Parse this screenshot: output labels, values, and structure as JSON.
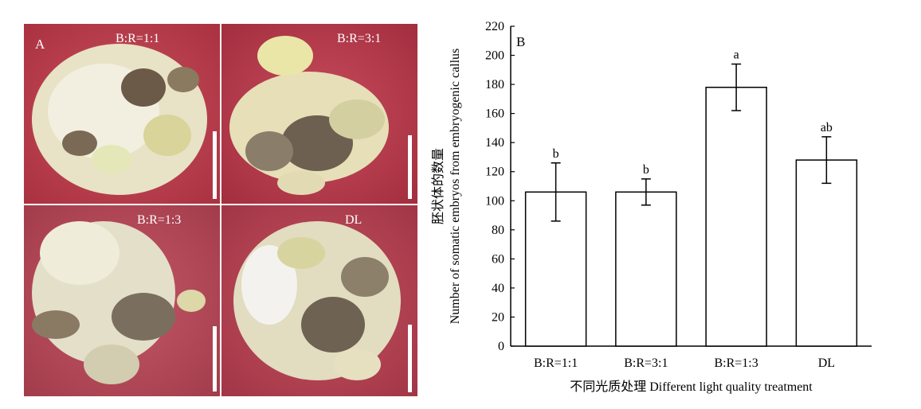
{
  "panel_a": {
    "letter": "A",
    "photos": [
      {
        "label": "B:R=1:1"
      },
      {
        "label": "B:R=3:1"
      },
      {
        "label": "B:R=1:3"
      },
      {
        "label": "DL"
      }
    ]
  },
  "chart_data": {
    "type": "bar",
    "panel_letter": "B",
    "categories": [
      "B:R=1:1",
      "B:R=3:1",
      "B:R=1:3",
      "DL"
    ],
    "values": [
      106,
      106,
      178,
      128
    ],
    "errors": [
      20,
      9,
      16,
      16
    ],
    "significance": [
      "b",
      "b",
      "a",
      "ab"
    ],
    "ylim": [
      0,
      220
    ],
    "yticks": [
      0,
      20,
      40,
      60,
      80,
      100,
      120,
      140,
      160,
      180,
      200,
      220
    ],
    "ylabel_line1": "胚状体的数量",
    "ylabel_line2": "Number of somatic embryos from embryogenic callus",
    "xlabel": "不同光质处理 Different light quality treatment",
    "bar_fill": "#ffffff",
    "bar_stroke": "#000000"
  }
}
